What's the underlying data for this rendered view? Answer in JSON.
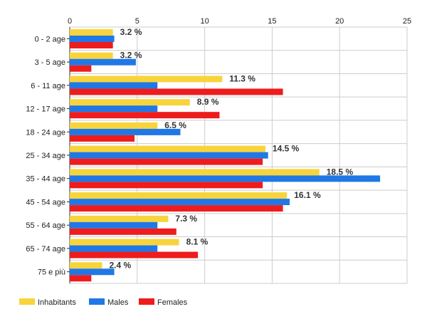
{
  "chart_data": {
    "type": "bar",
    "orientation": "horizontal",
    "categories": [
      "0 - 2 age",
      "3 - 5 age",
      "6 - 11 age",
      "12 - 17 age",
      "18 - 24 age",
      "25 - 34 age",
      "35 - 44 age",
      "45 - 54 age",
      "55 - 64 age",
      "65 - 74 age",
      "75 e più"
    ],
    "series": [
      {
        "name": "Inhabitants",
        "color": "#f8d43c",
        "values": [
          3.2,
          3.2,
          11.3,
          8.9,
          6.5,
          14.5,
          18.5,
          16.1,
          7.3,
          8.1,
          2.4
        ]
      },
      {
        "name": "Males",
        "color": "#1f78e6",
        "values": [
          3.3,
          4.9,
          6.5,
          6.5,
          8.2,
          14.7,
          23.0,
          16.3,
          6.5,
          6.5,
          3.3
        ]
      },
      {
        "name": "Females",
        "color": "#ee1c1c",
        "values": [
          3.2,
          1.6,
          15.8,
          11.1,
          4.8,
          14.3,
          14.3,
          15.8,
          7.9,
          9.5,
          1.6
        ]
      }
    ],
    "data_labels": [
      "3.2 %",
      "3.2 %",
      "11.3 %",
      "8.9 %",
      "6.5 %",
      "14.5 %",
      "18.5 %",
      "16.1 %",
      "7.3 %",
      "8.1 %",
      "2.4 %"
    ],
    "xlim": [
      0,
      25
    ],
    "xticks": [
      0,
      5,
      10,
      15,
      20,
      25
    ],
    "x_axis_position": "top",
    "grid": true,
    "legend_position": "bottom-left"
  }
}
